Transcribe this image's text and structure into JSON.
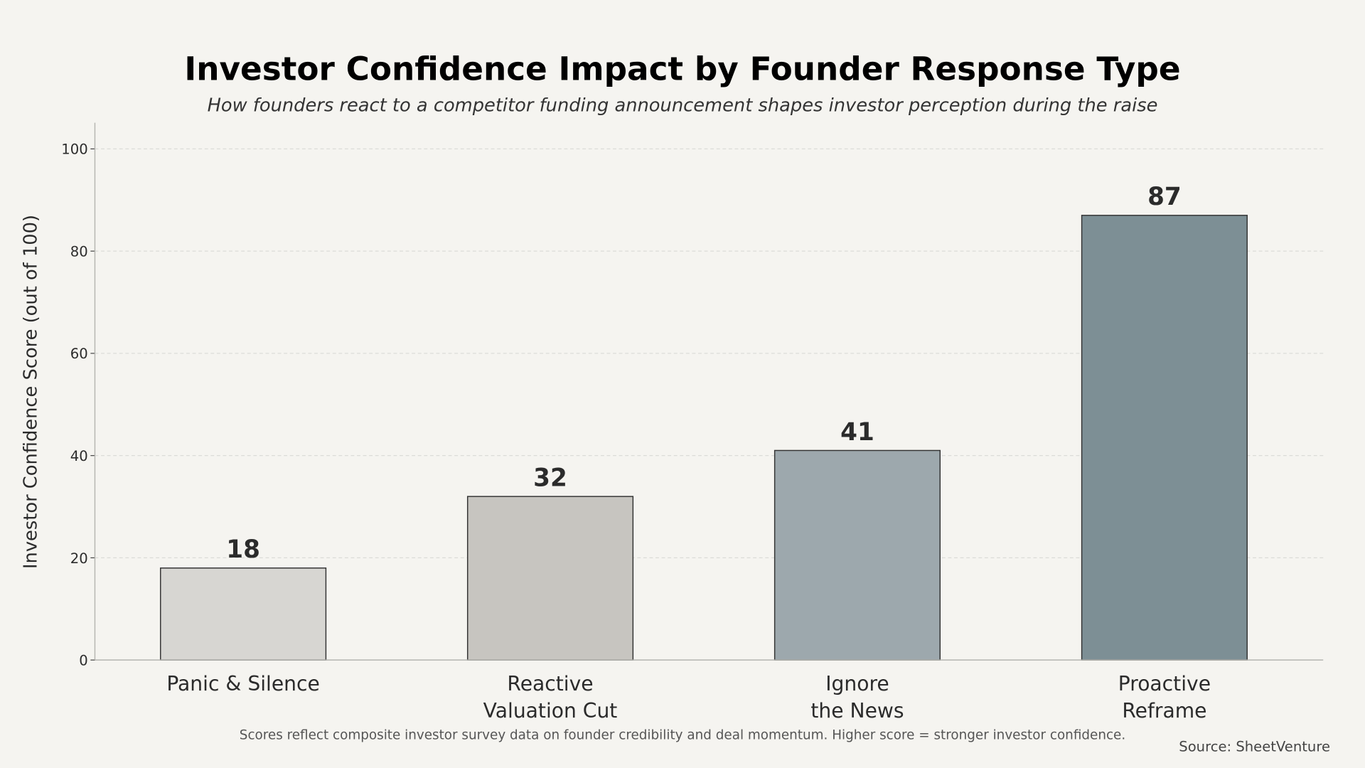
{
  "chart_data": {
    "type": "bar",
    "title": "Investor Confidence Impact by Founder Response Type",
    "subtitle": "How founders react to a competitor funding announcement shapes investor perception during the raise",
    "xlabel": "",
    "ylabel": "Investor Confidence Score (out of 100)",
    "categories": [
      [
        "Panic & Silence"
      ],
      [
        "Reactive",
        "Valuation Cut"
      ],
      [
        "Ignore",
        "the News"
      ],
      [
        "Proactive",
        "Reframe"
      ]
    ],
    "values": [
      18,
      32,
      41,
      87
    ],
    "data_labels": [
      "18",
      "32",
      "41",
      "87"
    ],
    "bar_colors": [
      "#d7d6d2",
      "#c7c5c0",
      "#9da8ad",
      "#7d8f95"
    ],
    "ylim": [
      0,
      105
    ],
    "yticks": [
      0,
      20,
      40,
      60,
      80,
      100
    ],
    "grid": true,
    "footnote": "Scores reflect composite investor survey data on founder credibility and deal momentum. Higher score = stronger investor confidence.",
    "source": "Source: SheetVenture"
  },
  "colors": {
    "background": "#f5f4f0",
    "text": "#2b2b2b",
    "grid": "#dcdcd8",
    "axis": "#b5b5b0"
  }
}
